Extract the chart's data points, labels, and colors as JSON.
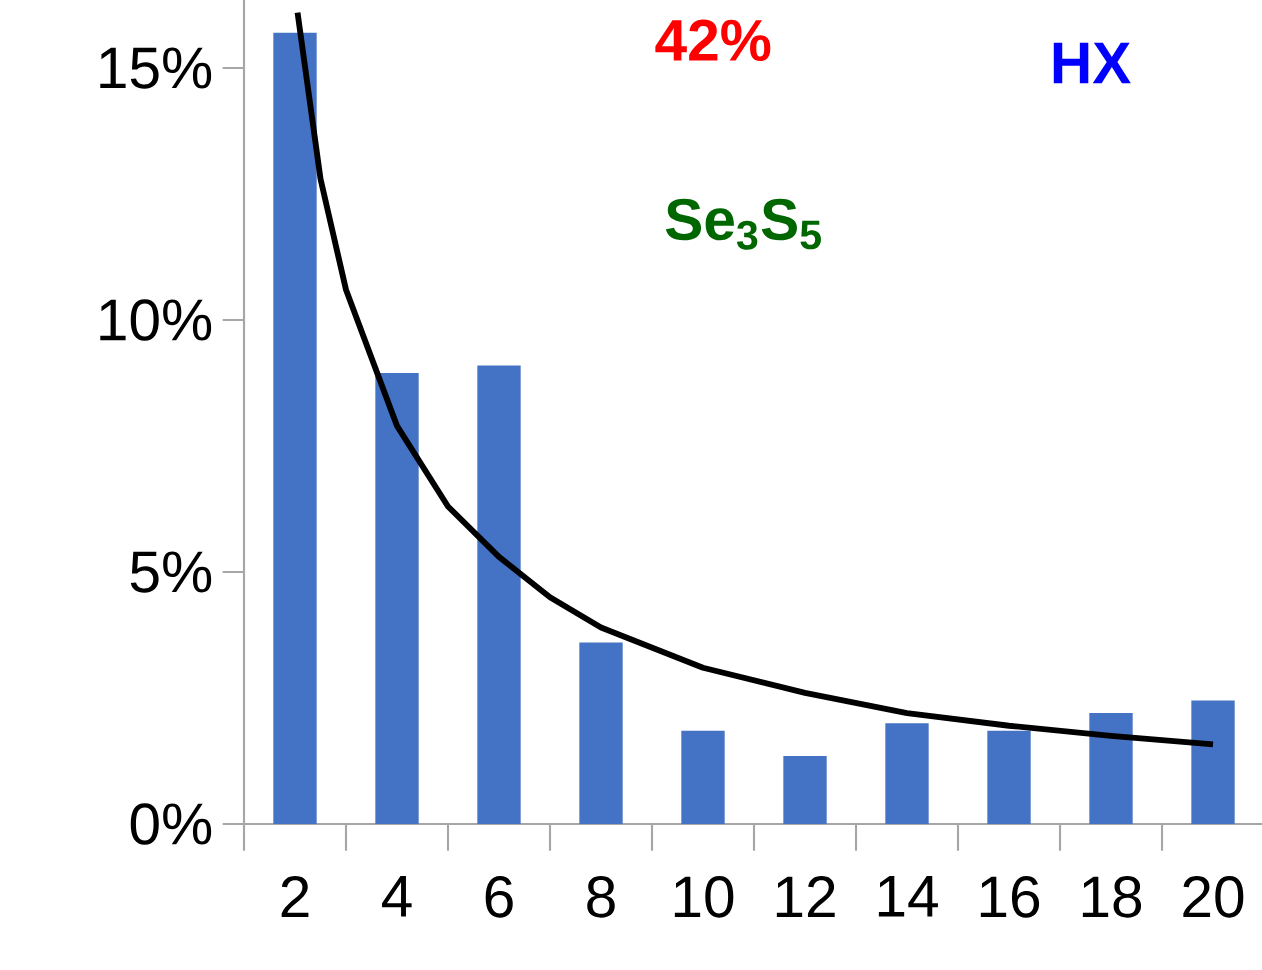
{
  "chart_data": {
    "type": "bar",
    "xlim": [
      1,
      21
    ],
    "ylim": [
      0,
      16.35
    ],
    "xticks": [
      {
        "value": 1,
        "label": null
      },
      2,
      {
        "value": 3,
        "label": null
      },
      4,
      {
        "value": 5,
        "label": null
      },
      6,
      {
        "value": 7,
        "label": null
      },
      8,
      {
        "value": 9,
        "label": null
      },
      10,
      {
        "value": 11,
        "label": null
      },
      12,
      {
        "value": 13,
        "label": null
      },
      14,
      {
        "value": 15,
        "label": null
      },
      16,
      {
        "value": 17,
        "label": null
      },
      18,
      {
        "value": 19,
        "label": null
      },
      20,
      {
        "value": 21,
        "label": null
      }
    ],
    "yticks": [
      {
        "value": 0,
        "label": "0%"
      },
      {
        "value": 5,
        "label": "5%"
      },
      {
        "value": 10,
        "label": "10%"
      },
      {
        "value": 15,
        "label": "15%"
      }
    ],
    "series": [
      {
        "color": "#4472c4",
        "x": [
          2,
          4,
          6,
          8,
          10,
          12,
          14,
          16,
          18,
          20
        ],
        "values": [
          15.7,
          8.95,
          9.1,
          3.6,
          1.85,
          1.35,
          2.0,
          1.85,
          2.2,
          2.45
        ]
      },
      {
        "type": "line",
        "color": "#000000",
        "x": [
          2.05,
          2.5,
          3,
          4,
          5,
          6,
          7,
          8,
          10,
          12,
          14,
          16,
          18,
          20
        ],
        "values": [
          16.1,
          12.8,
          10.6,
          7.9,
          6.3,
          5.3,
          4.5,
          3.9,
          3.1,
          2.6,
          2.2,
          1.95,
          1.75,
          1.58
        ]
      }
    ],
    "annotations": [
      "42%",
      "HX",
      "Se$_{3}$S$_{5}$"
    ]
  }
}
